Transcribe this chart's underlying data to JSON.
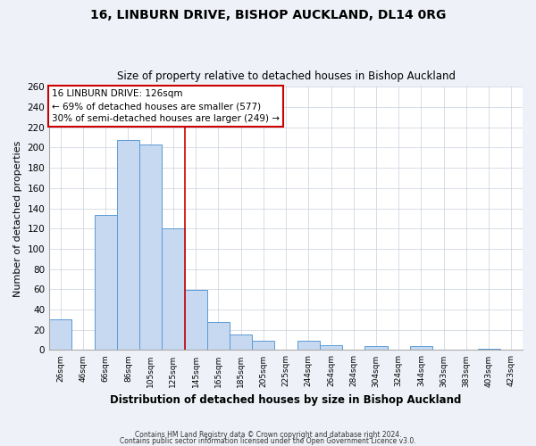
{
  "title": "16, LINBURN DRIVE, BISHOP AUCKLAND, DL14 0RG",
  "subtitle": "Size of property relative to detached houses in Bishop Auckland",
  "xlabel": "Distribution of detached houses by size in Bishop Auckland",
  "ylabel": "Number of detached properties",
  "bar_color": "#c6d9f0",
  "bar_edge_color": "#5b9bd5",
  "marker_line_color": "#cc0000",
  "annotation_line1": "16 LINBURN DRIVE: 126sqm",
  "annotation_line2": "← 69% of detached houses are smaller (577)",
  "annotation_line3": "30% of semi-detached houses are larger (249) →",
  "bin_labels": [
    "26sqm",
    "46sqm",
    "66sqm",
    "86sqm",
    "105sqm",
    "125sqm",
    "145sqm",
    "165sqm",
    "185sqm",
    "205sqm",
    "225sqm",
    "244sqm",
    "264sqm",
    "284sqm",
    "304sqm",
    "324sqm",
    "344sqm",
    "363sqm",
    "383sqm",
    "403sqm",
    "423sqm"
  ],
  "counts": [
    30,
    0,
    133,
    207,
    203,
    120,
    59,
    28,
    15,
    9,
    0,
    9,
    5,
    0,
    4,
    0,
    4,
    0,
    0,
    1,
    0
  ],
  "marker_bin_index": 5,
  "ylim": [
    0,
    260
  ],
  "yticks": [
    0,
    20,
    40,
    60,
    80,
    100,
    120,
    140,
    160,
    180,
    200,
    220,
    240,
    260
  ],
  "footer1": "Contains HM Land Registry data © Crown copyright and database right 2024.",
  "footer2": "Contains public sector information licensed under the Open Government Licence v3.0.",
  "background_color": "#eef2f8",
  "plot_background": "#ffffff",
  "grid_color": "#c8d0dc"
}
